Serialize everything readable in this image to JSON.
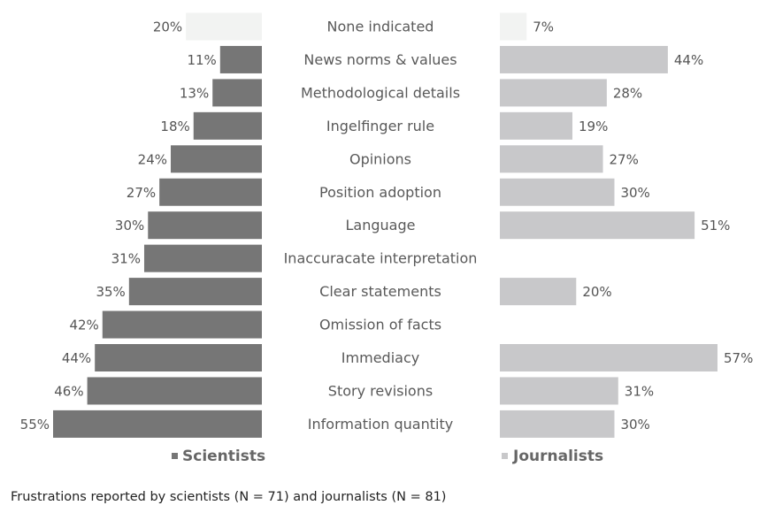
{
  "chart_data": {
    "type": "bar",
    "orientation": "horizontal-butterfly",
    "categories": [
      "None indicated",
      "News norms & values",
      "Methodological details",
      "Ingelfinger rule",
      "Opinions",
      "Position adoption",
      "Language",
      "Inaccuracate interpretation",
      "Clear statements",
      "Omission of facts",
      "Immediacy",
      "Story revisions",
      "Information quantity"
    ],
    "series": [
      {
        "name": "Scientists",
        "color": "#767676",
        "highlight_color": "#f2f3f2",
        "values": [
          20,
          11,
          13,
          18,
          24,
          27,
          30,
          31,
          35,
          42,
          44,
          46,
          55
        ],
        "labels": [
          "20%",
          "11%",
          "13%",
          "18%",
          "24%",
          "27%",
          "30%",
          "31%",
          "35%",
          "42%",
          "44%",
          "46%",
          "55%"
        ]
      },
      {
        "name": "Journalists",
        "color": "#c8c8ca",
        "highlight_color": "#f2f3f2",
        "values": [
          7,
          44,
          28,
          19,
          27,
          30,
          51,
          null,
          20,
          null,
          57,
          31,
          30
        ],
        "labels": [
          "7%",
          "44%",
          "28%",
          "19%",
          "27%",
          "30%",
          "51%",
          "",
          "20%",
          "",
          "57%",
          "31%",
          "30%"
        ]
      }
    ],
    "highlight_category": "None indicated",
    "legend": [
      "Scientists",
      "Journalists"
    ],
    "legend_placement": "bottom",
    "grid": false
  },
  "caption": "Frustrations reported by scientists (N = 71) and journalists (N = 81)"
}
